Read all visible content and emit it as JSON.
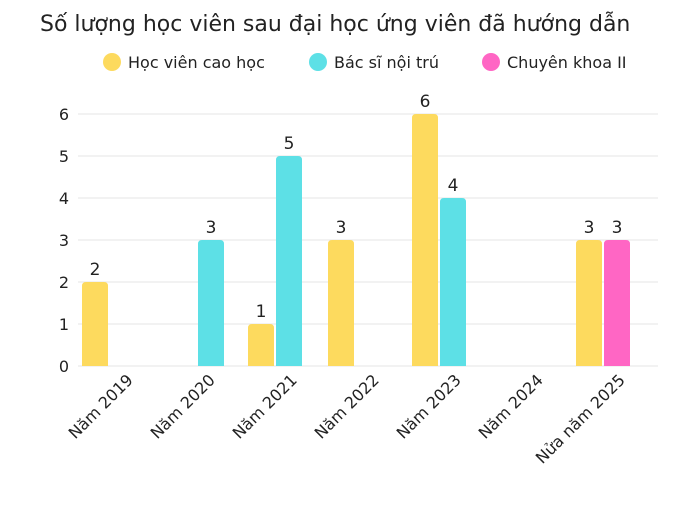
{
  "chart_data": {
    "type": "bar",
    "title": "Số lượng học viên sau đại học ứng viên đã hướng dẫn",
    "categories": [
      "Năm 2019",
      "Năm 2020",
      "Năm 2021",
      "Năm 2022",
      "Năm 2023",
      "Năm 2024",
      "Nửa năm 2025"
    ],
    "series": [
      {
        "name": "Học viên cao học",
        "color": "#FDDA5E",
        "values": [
          2,
          null,
          1,
          3,
          6,
          null,
          3
        ]
      },
      {
        "name": "Bác sĩ nội trú",
        "color": "#5DE0E6",
        "values": [
          null,
          3,
          5,
          null,
          4,
          null,
          null
        ]
      },
      {
        "name": "Chuyên khoa II",
        "color": "#FF66C4",
        "values": [
          null,
          null,
          null,
          null,
          null,
          null,
          3
        ]
      }
    ],
    "y_ticks": [
      0,
      1,
      2,
      3,
      4,
      5,
      6
    ],
    "ylim": [
      0,
      6
    ],
    "grid": true,
    "legend_position": "top",
    "xlabel": "",
    "ylabel": ""
  }
}
